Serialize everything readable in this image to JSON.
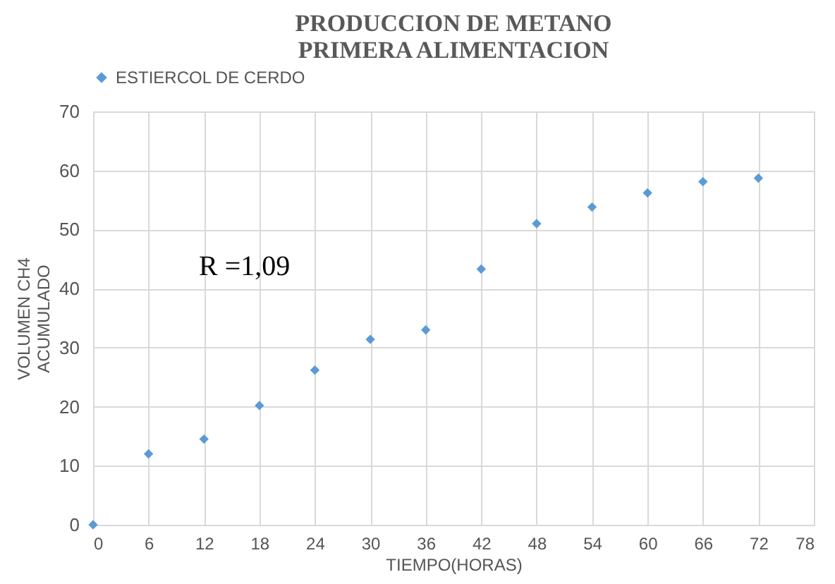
{
  "chart_data": {
    "type": "scatter",
    "title": "PRODUCCION DE METANO\nPRIMERA ALIMENTACION",
    "xlabel": "TIEMPO(HORAS)",
    "ylabel": "VOLUMEN CH4\nACUMULADO",
    "x": [
      0,
      6,
      12,
      18,
      24,
      30,
      36,
      42,
      48,
      54,
      60,
      66,
      72
    ],
    "series": [
      {
        "name": "ESTIERCOL DE CERDO",
        "color": "#5b9bd5",
        "values": [
          0,
          12,
          14.5,
          20.2,
          26.2,
          31.4,
          33,
          43.3,
          51,
          53.8,
          56.2,
          58.1,
          58.7
        ]
      }
    ],
    "annotations": [
      "R =1,09"
    ],
    "xlim": [
      0,
      78
    ],
    "xticks": [
      0,
      6,
      12,
      18,
      24,
      30,
      36,
      42,
      48,
      54,
      60,
      66,
      72,
      78
    ],
    "ylim": [
      0,
      70
    ],
    "yticks": [
      0,
      10,
      20,
      30,
      40,
      50,
      60,
      70
    ],
    "grid": true,
    "legend": "top",
    "marker": "diamond"
  }
}
